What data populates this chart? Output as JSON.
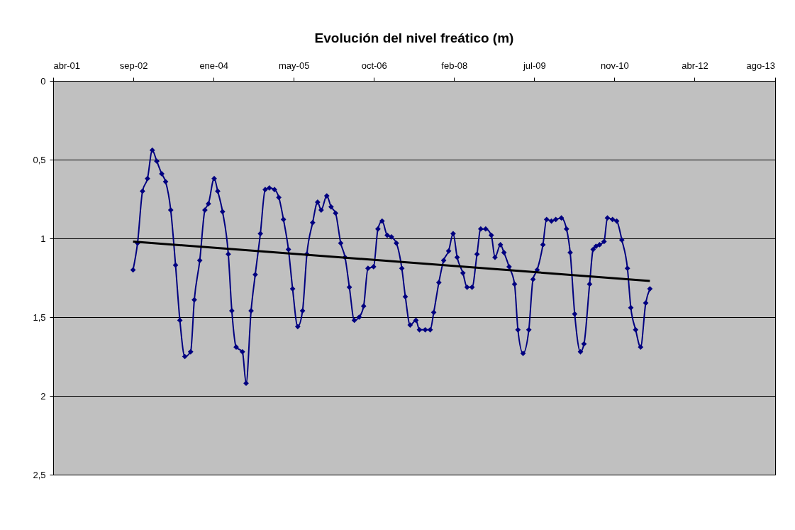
{
  "chart_data": {
    "type": "line",
    "title": "Evolución del nivel freático (m)",
    "xlim": [
      "2001-04-19",
      "2013-08-16"
    ],
    "xticks": [
      {
        "value": "2001-04-19",
        "label": "abr-01"
      },
      {
        "value": "2002-09-01",
        "label": "sep-02"
      },
      {
        "value": "2004-01-14",
        "label": "ene-04"
      },
      {
        "value": "2005-05-28",
        "label": "may-05"
      },
      {
        "value": "2006-10-10",
        "label": "oct-06"
      },
      {
        "value": "2008-02-22",
        "label": "feb-08"
      },
      {
        "value": "2009-07-06",
        "label": "jul-09"
      },
      {
        "value": "2010-11-18",
        "label": "nov-10"
      },
      {
        "value": "2012-04-01",
        "label": "abr-12"
      },
      {
        "value": "2013-08-14",
        "label": "ago-13"
      }
    ],
    "ylim": [
      2.5,
      0
    ],
    "yticks": [
      0,
      {
        "value": 0.5,
        "label": "0,5"
      },
      1,
      {
        "value": 1.5,
        "label": "1,5"
      },
      2,
      {
        "value": 2.5,
        "label": "2,5"
      }
    ],
    "grid": "y",
    "marker": "diamond",
    "line_style": "solid",
    "series": [
      {
        "color": "#000080",
        "x": [
          "2002-08-30",
          "2002-09-27",
          "2002-10-28",
          "2002-11-28",
          "2002-12-28",
          "2003-01-25",
          "2003-02-25",
          "2003-03-21",
          "2003-04-22",
          "2003-05-22",
          "2003-06-18",
          "2003-07-19",
          "2003-08-24",
          "2003-09-16",
          "2003-10-20",
          "2003-11-21",
          "2003-12-13",
          "2004-01-18",
          "2004-02-09",
          "2004-03-10",
          "2004-04-15",
          "2004-05-07",
          "2004-06-03",
          "2004-07-12",
          "2004-08-04",
          "2004-09-04",
          "2004-09-30",
          "2004-11-01",
          "2004-12-01",
          "2004-12-27",
          "2005-01-28",
          "2005-02-24",
          "2005-03-25",
          "2005-04-25",
          "2005-05-21",
          "2005-06-22",
          "2005-07-22",
          "2005-08-18",
          "2005-09-23",
          "2005-10-24",
          "2005-11-15",
          "2005-12-20",
          "2006-01-16",
          "2006-02-13",
          "2006-03-17",
          "2006-04-13",
          "2006-05-10",
          "2006-06-10",
          "2006-07-10",
          "2006-08-07",
          "2006-09-03",
          "2006-10-08",
          "2006-11-04",
          "2006-11-30",
          "2007-01-01",
          "2007-01-27",
          "2007-02-27",
          "2007-04-02",
          "2007-04-24",
          "2007-05-24",
          "2007-06-29",
          "2007-07-21",
          "2007-08-26",
          "2007-09-26",
          "2007-10-18",
          "2007-11-19",
          "2007-12-19",
          "2008-01-19",
          "2008-02-16",
          "2008-03-12",
          "2008-04-17",
          "2008-05-13",
          "2008-06-13",
          "2008-07-14",
          "2008-08-06",
          "2008-09-06",
          "2008-10-11",
          "2008-11-03",
          "2008-12-07",
          "2008-12-29",
          "2009-01-30",
          "2009-03-05",
          "2009-03-26",
          "2009-04-27",
          "2009-06-02",
          "2009-06-28",
          "2009-07-24",
          "2009-08-29",
          "2009-09-21",
          "2009-10-21",
          "2009-11-17",
          "2009-12-22",
          "2010-01-23",
          "2010-02-15",
          "2010-03-15",
          "2010-04-20",
          "2010-05-12",
          "2010-06-16",
          "2010-07-08",
          "2010-07-26",
          "2010-08-17",
          "2010-09-14",
          "2010-10-05",
          "2010-11-06",
          "2010-12-02",
          "2011-01-03",
          "2011-02-07",
          "2011-02-28",
          "2011-03-30",
          "2011-04-30",
          "2011-06-01",
          "2011-06-27"
        ],
        "values": [
          1.2,
          1.03,
          0.7,
          0.62,
          0.44,
          0.51,
          0.59,
          0.64,
          0.82,
          1.17,
          1.52,
          1.75,
          1.72,
          1.39,
          1.14,
          0.82,
          0.78,
          0.62,
          0.7,
          0.83,
          1.1,
          1.46,
          1.69,
          1.72,
          1.92,
          1.46,
          1.23,
          0.97,
          0.69,
          0.68,
          0.69,
          0.74,
          0.88,
          1.07,
          1.32,
          1.56,
          1.46,
          1.1,
          0.9,
          0.77,
          0.82,
          0.73,
          0.8,
          0.84,
          1.03,
          1.12,
          1.31,
          1.52,
          1.5,
          1.43,
          1.19,
          1.18,
          0.94,
          0.89,
          0.98,
          0.99,
          1.03,
          1.19,
          1.37,
          1.55,
          1.52,
          1.58,
          1.58,
          1.58,
          1.47,
          1.28,
          1.14,
          1.08,
          0.97,
          1.12,
          1.22,
          1.31,
          1.31,
          1.1,
          0.94,
          0.94,
          0.98,
          1.12,
          1.04,
          1.09,
          1.18,
          1.29,
          1.58,
          1.73,
          1.58,
          1.26,
          1.2,
          1.04,
          0.88,
          0.89,
          0.88,
          0.87,
          0.94,
          1.09,
          1.48,
          1.72,
          1.67,
          1.29,
          1.07,
          1.05,
          1.04,
          1.02,
          0.87,
          0.88,
          0.89,
          1.01,
          1.19,
          1.44,
          1.58,
          1.69,
          1.41,
          1.32
        ]
      },
      {
        "color": "#000000",
        "marker": "none",
        "x": [
          "2002-08-30",
          "2011-06-27"
        ],
        "values": [
          1.02,
          1.27
        ]
      }
    ]
  }
}
